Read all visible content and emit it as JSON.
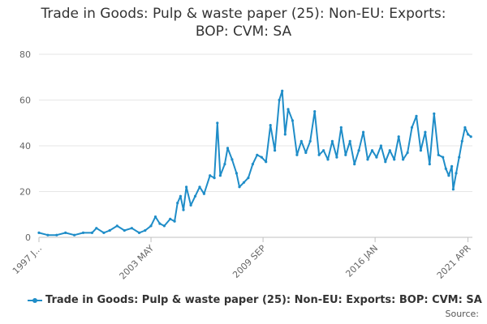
{
  "chart_data": {
    "type": "line",
    "title_lines": [
      "Trade in Goods: Pulp & waste paper (25): Non-EU: Exports:",
      "BOP: CVM: SA"
    ],
    "xlabel": "",
    "ylabel": "",
    "ylim": [
      0,
      80
    ],
    "y_ticks": [
      0,
      20,
      40,
      60,
      80
    ],
    "x_tick_labels": [
      "1997 J...",
      "2003 MAY",
      "2009 SEP",
      "2016 JAN",
      "2021 APR"
    ],
    "x_tick_positions": [
      "1997-01",
      "2003-05",
      "2009-09",
      "2016-01",
      "2021-04"
    ],
    "x_range": [
      "1997-01",
      "2021-07"
    ],
    "grid": "horizontal",
    "legend_position": "bottom",
    "series": [
      {
        "name": "Trade in Goods: Pulp & waste paper (25): Non-EU: Exports: BOP: CVM: SA",
        "color": "#1f8dc8",
        "points": [
          [
            "1997-01",
            2
          ],
          [
            "1997-07",
            1
          ],
          [
            "1998-01",
            1
          ],
          [
            "1998-07",
            2
          ],
          [
            "1999-01",
            1
          ],
          [
            "1999-07",
            2
          ],
          [
            "2000-01",
            2
          ],
          [
            "2000-04",
            4
          ],
          [
            "2000-09",
            2
          ],
          [
            "2001-01",
            3
          ],
          [
            "2001-06",
            5
          ],
          [
            "2001-11",
            3
          ],
          [
            "2002-04",
            4
          ],
          [
            "2002-09",
            2
          ],
          [
            "2003-01",
            3
          ],
          [
            "2003-05",
            5
          ],
          [
            "2003-08",
            9
          ],
          [
            "2003-11",
            6
          ],
          [
            "2004-02",
            5
          ],
          [
            "2004-06",
            8
          ],
          [
            "2004-09",
            7
          ],
          [
            "2004-11",
            15
          ],
          [
            "2005-01",
            18
          ],
          [
            "2005-03",
            12
          ],
          [
            "2005-05",
            22
          ],
          [
            "2005-08",
            14
          ],
          [
            "2005-11",
            18
          ],
          [
            "2006-02",
            22
          ],
          [
            "2006-05",
            19
          ],
          [
            "2006-09",
            27
          ],
          [
            "2006-12",
            26
          ],
          [
            "2007-02",
            50
          ],
          [
            "2007-04",
            27
          ],
          [
            "2007-07",
            32
          ],
          [
            "2007-09",
            39
          ],
          [
            "2007-12",
            34
          ],
          [
            "2008-03",
            28
          ],
          [
            "2008-05",
            22
          ],
          [
            "2008-08",
            24
          ],
          [
            "2008-11",
            26
          ],
          [
            "2009-02",
            32
          ],
          [
            "2009-05",
            36
          ],
          [
            "2009-08",
            35
          ],
          [
            "2009-11",
            33
          ],
          [
            "2010-02",
            49
          ],
          [
            "2010-05",
            38
          ],
          [
            "2010-08",
            60
          ],
          [
            "2010-10",
            64
          ],
          [
            "2010-12",
            45
          ],
          [
            "2011-02",
            56
          ],
          [
            "2011-05",
            51
          ],
          [
            "2011-08",
            36
          ],
          [
            "2011-11",
            42
          ],
          [
            "2012-02",
            37
          ],
          [
            "2012-05",
            42
          ],
          [
            "2012-08",
            55
          ],
          [
            "2012-11",
            36
          ],
          [
            "2013-02",
            38
          ],
          [
            "2013-05",
            34
          ],
          [
            "2013-08",
            42
          ],
          [
            "2013-11",
            35
          ],
          [
            "2014-02",
            48
          ],
          [
            "2014-05",
            36
          ],
          [
            "2014-08",
            42
          ],
          [
            "2014-11",
            32
          ],
          [
            "2015-02",
            38
          ],
          [
            "2015-05",
            46
          ],
          [
            "2015-08",
            34
          ],
          [
            "2015-11",
            38
          ],
          [
            "2016-02",
            35
          ],
          [
            "2016-05",
            40
          ],
          [
            "2016-08",
            33
          ],
          [
            "2016-11",
            38
          ],
          [
            "2017-02",
            34
          ],
          [
            "2017-05",
            44
          ],
          [
            "2017-08",
            34
          ],
          [
            "2017-11",
            37
          ],
          [
            "2018-02",
            48
          ],
          [
            "2018-05",
            53
          ],
          [
            "2018-08",
            38
          ],
          [
            "2018-11",
            46
          ],
          [
            "2019-02",
            32
          ],
          [
            "2019-05",
            54
          ],
          [
            "2019-08",
            36
          ],
          [
            "2019-11",
            35
          ],
          [
            "2020-01",
            30
          ],
          [
            "2020-03",
            27
          ],
          [
            "2020-05",
            31
          ],
          [
            "2020-06",
            21
          ],
          [
            "2020-08",
            28
          ],
          [
            "2020-10",
            35
          ],
          [
            "2020-12",
            42
          ],
          [
            "2021-02",
            48
          ],
          [
            "2021-04",
            45
          ],
          [
            "2021-06",
            44
          ]
        ]
      }
    ]
  },
  "credits": "Source:"
}
